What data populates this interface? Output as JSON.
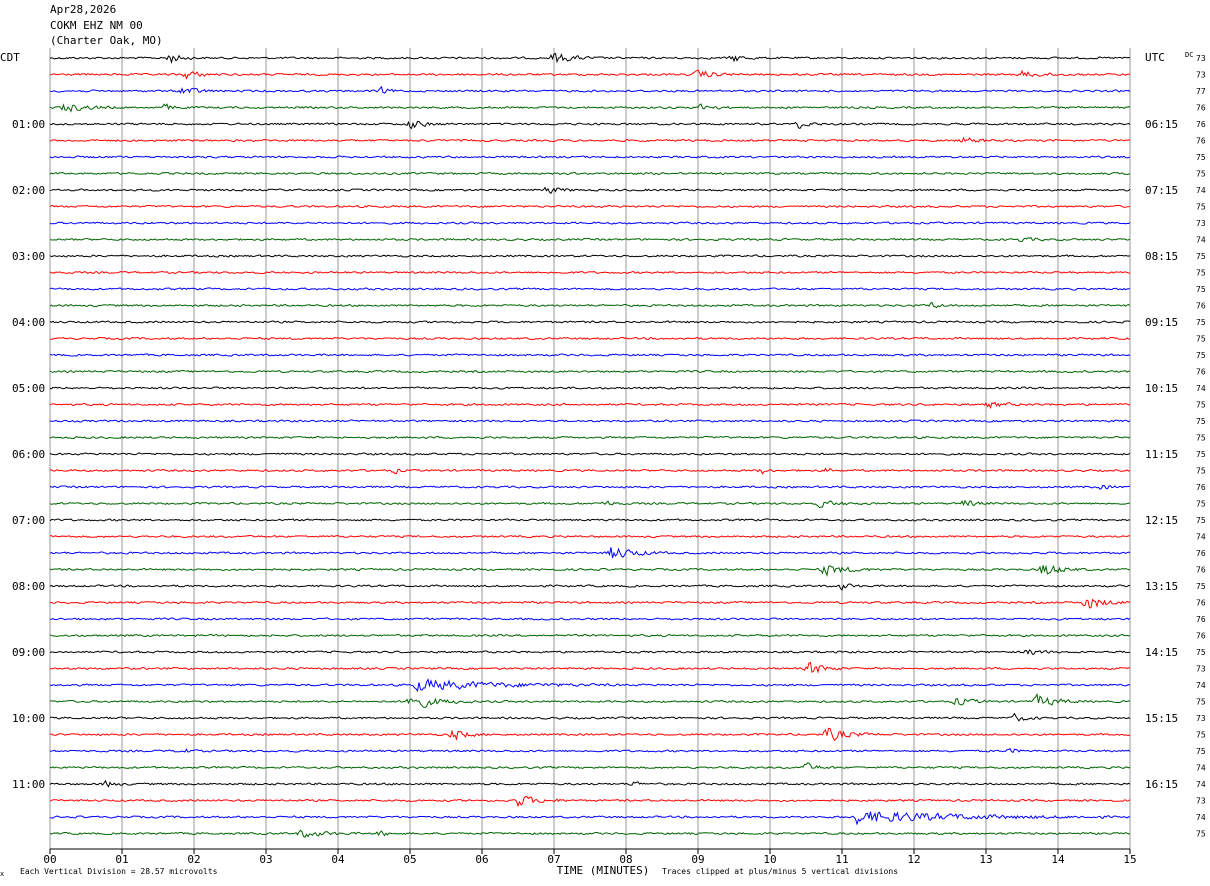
{
  "header": {
    "date": "Apr28,2026",
    "station": "COKM EHZ NM 00",
    "location": "(Charter Oak, MO)"
  },
  "labels": {
    "left_tz": "CDT",
    "right_tz": "UTC",
    "dc_header": "DC",
    "xlabel": "TIME (MINUTES)",
    "footer_left": "Each Vertical Division =   28.57 microvolts",
    "footer_right": "Traces clipped at plus/minus 5 vertical divisions",
    "corner_mark": "x"
  },
  "colors": {
    "cycle": [
      "#000000",
      "#ff0000",
      "#0000ff",
      "#006400"
    ],
    "grid": "#9a9a9a"
  },
  "chart_data": {
    "type": "line",
    "title": "Apr28,2026 COKM EHZ NM 00 (Charter Oak, MO)",
    "xlabel": "TIME (MINUTES)",
    "xlim": [
      0,
      15
    ],
    "x_ticks": [
      "00",
      "01",
      "02",
      "03",
      "04",
      "05",
      "06",
      "07",
      "08",
      "09",
      "10",
      "11",
      "12",
      "13",
      "14",
      "15"
    ],
    "traces_per_hour": 4,
    "minutes_per_trace": 15,
    "left_hour_labels": [
      "01:00",
      "02:00",
      "03:00",
      "04:00",
      "05:00",
      "06:00",
      "07:00",
      "08:00",
      "09:00",
      "10:00",
      "11:00"
    ],
    "right_hour_labels": [
      "06:15",
      "07:15",
      "08:15",
      "09:15",
      "10:15",
      "11:15",
      "12:15",
      "13:15",
      "14:15",
      "15:15",
      "16:15"
    ],
    "dc_offsets": [
      73,
      73,
      77,
      76,
      76,
      76,
      75,
      75,
      74,
      75,
      73,
      74,
      75,
      75,
      75,
      76,
      75,
      75,
      75,
      76,
      74,
      75,
      75,
      75,
      75,
      75,
      76,
      75,
      75,
      74,
      76,
      76,
      75,
      76,
      76,
      76,
      75,
      73,
      74,
      75,
      73,
      75,
      75,
      74,
      74,
      73,
      74,
      75
    ],
    "events": [
      {
        "trace": 0,
        "minute": 1.65,
        "amp": 2.5,
        "dur": 0.4
      },
      {
        "trace": 0,
        "minute": 7.0,
        "amp": 2.2,
        "dur": 0.7
      },
      {
        "trace": 0,
        "minute": 9.5,
        "amp": 1.5,
        "dur": 0.4
      },
      {
        "trace": 1,
        "minute": 1.9,
        "amp": 1.8,
        "dur": 0.5
      },
      {
        "trace": 1,
        "minute": 9.0,
        "amp": 1.8,
        "dur": 0.6
      },
      {
        "trace": 1,
        "minute": 13.5,
        "amp": 1.2,
        "dur": 0.8
      },
      {
        "trace": 2,
        "minute": 1.85,
        "amp": 2.0,
        "dur": 0.5
      },
      {
        "trace": 2,
        "minute": 4.6,
        "amp": 1.3,
        "dur": 0.3
      },
      {
        "trace": 3,
        "minute": 0.2,
        "amp": 1.8,
        "dur": 0.8
      },
      {
        "trace": 3,
        "minute": 1.6,
        "amp": 1.4,
        "dur": 0.3
      },
      {
        "trace": 3,
        "minute": 9.05,
        "amp": 1.6,
        "dur": 0.4
      },
      {
        "trace": 4,
        "minute": 5.0,
        "amp": 2.0,
        "dur": 0.5
      },
      {
        "trace": 4,
        "minute": 10.4,
        "amp": 1.6,
        "dur": 0.4
      },
      {
        "trace": 5,
        "minute": 12.7,
        "amp": 1.2,
        "dur": 0.5
      },
      {
        "trace": 8,
        "minute": 6.9,
        "amp": 1.5,
        "dur": 0.5
      },
      {
        "trace": 11,
        "minute": 13.5,
        "amp": 0.9,
        "dur": 0.4
      },
      {
        "trace": 15,
        "minute": 12.25,
        "amp": 1.3,
        "dur": 0.3
      },
      {
        "trace": 21,
        "minute": 13.05,
        "amp": 1.2,
        "dur": 0.6
      },
      {
        "trace": 25,
        "minute": 4.8,
        "amp": 1.2,
        "dur": 0.15
      },
      {
        "trace": 25,
        "minute": 9.9,
        "amp": 1.2,
        "dur": 0.2
      },
      {
        "trace": 25,
        "minute": 10.8,
        "amp": 1.0,
        "dur": 0.15
      },
      {
        "trace": 26,
        "minute": 14.6,
        "amp": 0.8,
        "dur": 0.4
      },
      {
        "trace": 27,
        "minute": 7.7,
        "amp": 1.4,
        "dur": 0.3
      },
      {
        "trace": 27,
        "minute": 10.7,
        "amp": 1.5,
        "dur": 0.6
      },
      {
        "trace": 27,
        "minute": 12.7,
        "amp": 1.6,
        "dur": 0.4
      },
      {
        "trace": 30,
        "minute": 7.8,
        "amp": 3.0,
        "dur": 0.8
      },
      {
        "trace": 31,
        "minute": 10.75,
        "amp": 2.5,
        "dur": 0.8
      },
      {
        "trace": 31,
        "minute": 13.8,
        "amp": 3.0,
        "dur": 0.6
      },
      {
        "trace": 32,
        "minute": 11.0,
        "amp": 1.5,
        "dur": 0.3
      },
      {
        "trace": 33,
        "minute": 14.4,
        "amp": 3.2,
        "dur": 0.6
      },
      {
        "trace": 36,
        "minute": 13.6,
        "amp": 1.4,
        "dur": 0.4
      },
      {
        "trace": 37,
        "minute": 10.55,
        "amp": 3.0,
        "dur": 0.5
      },
      {
        "trace": 38,
        "minute": 5.1,
        "amp": 2.5,
        "dur": 2.8
      },
      {
        "trace": 39,
        "minute": 5.0,
        "amp": 3.5,
        "dur": 0.9
      },
      {
        "trace": 39,
        "minute": 12.6,
        "amp": 1.8,
        "dur": 0.5
      },
      {
        "trace": 39,
        "minute": 13.7,
        "amp": 2.8,
        "dur": 0.7
      },
      {
        "trace": 40,
        "minute": 13.4,
        "amp": 1.6,
        "dur": 0.4
      },
      {
        "trace": 41,
        "minute": 5.6,
        "amp": 2.4,
        "dur": 0.5
      },
      {
        "trace": 41,
        "minute": 10.8,
        "amp": 3.0,
        "dur": 0.7
      },
      {
        "trace": 42,
        "minute": 1.8,
        "amp": 1.4,
        "dur": 0.3
      },
      {
        "trace": 42,
        "minute": 13.35,
        "amp": 1.1,
        "dur": 0.2
      },
      {
        "trace": 43,
        "minute": 10.5,
        "amp": 1.8,
        "dur": 0.4
      },
      {
        "trace": 44,
        "minute": 0.8,
        "amp": 1.6,
        "dur": 0.3
      },
      {
        "trace": 44,
        "minute": 8.1,
        "amp": 1.4,
        "dur": 0.2
      },
      {
        "trace": 45,
        "minute": 6.5,
        "amp": 2.4,
        "dur": 0.7
      },
      {
        "trace": 46,
        "minute": 11.2,
        "amp": 2.8,
        "dur": 3.5
      },
      {
        "trace": 47,
        "minute": 3.5,
        "amp": 1.6,
        "dur": 0.8
      },
      {
        "trace": 47,
        "minute": 4.6,
        "amp": 1.0,
        "dur": 0.3
      }
    ]
  }
}
